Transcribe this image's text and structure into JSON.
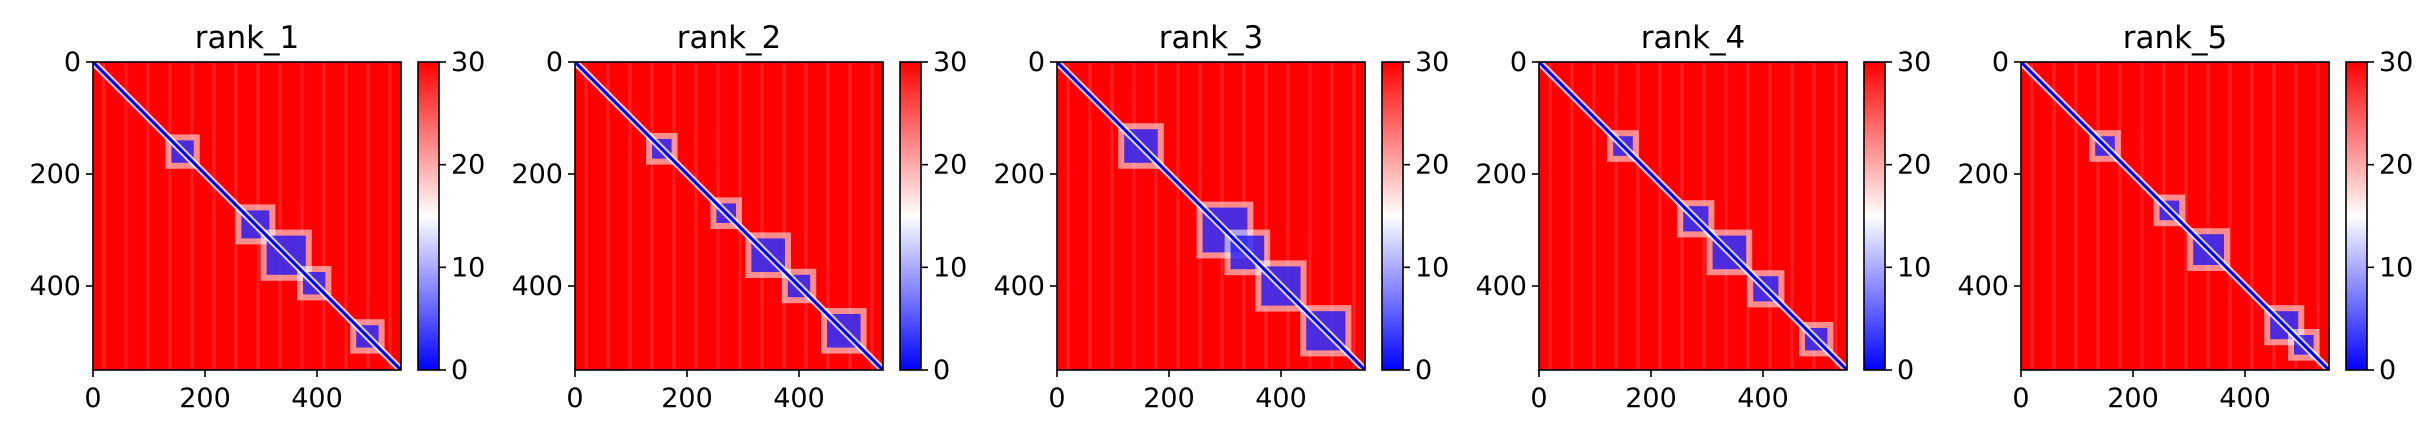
{
  "chart_data": [
    {
      "type": "heatmap",
      "title": "rank_1",
      "x_range": [
        0,
        550
      ],
      "y_range": [
        550,
        0
      ],
      "x_ticks": [
        0,
        200,
        400
      ],
      "y_ticks": [
        0,
        200,
        400
      ],
      "colorbar": {
        "range": [
          0,
          30
        ],
        "ticks": [
          0,
          10,
          20,
          30
        ],
        "colormap": "bwr",
        "colors": [
          "#0000ff",
          "#ffffff",
          "#ff0000"
        ]
      },
      "blue_blocks": [
        {
          "center": 160,
          "size": 40
        },
        {
          "center": 290,
          "size": 50
        },
        {
          "center": 345,
          "size": 70
        },
        {
          "center": 395,
          "size": 40
        },
        {
          "center": 490,
          "size": 40
        }
      ]
    },
    {
      "type": "heatmap",
      "title": "rank_2",
      "x_range": [
        0,
        550
      ],
      "y_range": [
        550,
        0
      ],
      "x_ticks": [
        0,
        200,
        400
      ],
      "y_ticks": [
        0,
        200,
        400
      ],
      "colorbar": {
        "range": [
          0,
          30
        ],
        "ticks": [
          0,
          10,
          20,
          30
        ],
        "colormap": "bwr",
        "colors": [
          "#0000ff",
          "#ffffff",
          "#ff0000"
        ]
      },
      "blue_blocks": [
        {
          "center": 155,
          "size": 35
        },
        {
          "center": 270,
          "size": 35
        },
        {
          "center": 345,
          "size": 60
        },
        {
          "center": 400,
          "size": 40
        },
        {
          "center": 480,
          "size": 60
        }
      ]
    },
    {
      "type": "heatmap",
      "title": "rank_3",
      "x_range": [
        0,
        550
      ],
      "y_range": [
        550,
        0
      ],
      "x_ticks": [
        0,
        200,
        400
      ],
      "y_ticks": [
        0,
        200,
        400
      ],
      "colorbar": {
        "range": [
          0,
          30
        ],
        "ticks": [
          0,
          10,
          20,
          30
        ],
        "colormap": "bwr",
        "colors": [
          "#0000ff",
          "#ffffff",
          "#ff0000"
        ]
      },
      "blue_blocks": [
        {
          "center": 150,
          "size": 60
        },
        {
          "center": 300,
          "size": 80
        },
        {
          "center": 340,
          "size": 60
        },
        {
          "center": 400,
          "size": 70
        },
        {
          "center": 480,
          "size": 70
        }
      ]
    },
    {
      "type": "heatmap",
      "title": "rank_4",
      "x_range": [
        0,
        550
      ],
      "y_range": [
        550,
        0
      ],
      "x_ticks": [
        0,
        200,
        400
      ],
      "y_ticks": [
        0,
        200,
        400
      ],
      "colorbar": {
        "range": [
          0,
          30
        ],
        "ticks": [
          0,
          10,
          20,
          30
        ],
        "colormap": "bwr",
        "colors": [
          "#0000ff",
          "#ffffff",
          "#ff0000"
        ]
      },
      "blue_blocks": [
        {
          "center": 150,
          "size": 35
        },
        {
          "center": 280,
          "size": 45
        },
        {
          "center": 340,
          "size": 60
        },
        {
          "center": 405,
          "size": 45
        },
        {
          "center": 495,
          "size": 40
        }
      ]
    },
    {
      "type": "heatmap",
      "title": "rank_5",
      "x_range": [
        0,
        550
      ],
      "y_range": [
        550,
        0
      ],
      "x_ticks": [
        0,
        200,
        400
      ],
      "y_ticks": [
        0,
        200,
        400
      ],
      "colorbar": {
        "range": [
          0,
          30
        ],
        "ticks": [
          0,
          10,
          20,
          30
        ],
        "colormap": "bwr",
        "colors": [
          "#0000ff",
          "#ffffff",
          "#ff0000"
        ]
      },
      "blue_blocks": [
        {
          "center": 150,
          "size": 35
        },
        {
          "center": 265,
          "size": 35
        },
        {
          "center": 335,
          "size": 55
        },
        {
          "center": 470,
          "size": 50
        },
        {
          "center": 505,
          "size": 35
        }
      ]
    }
  ]
}
